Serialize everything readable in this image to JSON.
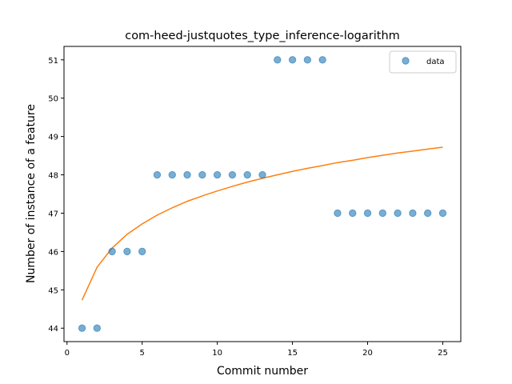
{
  "chart_data": {
    "type": "scatter",
    "title": "com-heed-justquotes_type_inference-logarithm",
    "xlabel": "Commit number",
    "ylabel": "Number of instance of a feature",
    "xlim": [
      -0.2,
      26.2
    ],
    "ylim": [
      43.65,
      51.35
    ],
    "xticks": [
      0,
      5,
      10,
      15,
      20,
      25
    ],
    "yticks": [
      44,
      45,
      46,
      47,
      48,
      49,
      50,
      51
    ],
    "grid": false,
    "legend_position": "top-right",
    "colors": {
      "scatter": "#1f77b4",
      "fit": "#ff7f0e"
    },
    "series": [
      {
        "name": "data",
        "kind": "scatter",
        "x": [
          1,
          2,
          3,
          4,
          5,
          6,
          7,
          8,
          9,
          10,
          11,
          12,
          13,
          14,
          15,
          16,
          17,
          18,
          19,
          20,
          21,
          22,
          23,
          24,
          25
        ],
        "y": [
          44,
          44,
          46,
          46,
          46,
          48,
          48,
          48,
          48,
          48,
          48,
          48,
          48,
          51,
          51,
          51,
          51,
          47,
          47,
          47,
          47,
          47,
          47,
          47,
          47
        ]
      },
      {
        "kind": "line",
        "x": [
          1,
          2,
          3,
          4,
          5,
          6,
          7,
          8,
          9,
          10,
          11,
          12,
          13,
          14,
          15,
          16,
          17,
          18,
          19,
          20,
          21,
          22,
          23,
          24,
          25
        ],
        "y": [
          44.73,
          45.59,
          46.09,
          46.45,
          46.72,
          46.95,
          47.14,
          47.31,
          47.45,
          47.58,
          47.7,
          47.81,
          47.91,
          48.0,
          48.09,
          48.17,
          48.24,
          48.32,
          48.38,
          48.45,
          48.51,
          48.57,
          48.62,
          48.67,
          48.72
        ]
      }
    ]
  }
}
